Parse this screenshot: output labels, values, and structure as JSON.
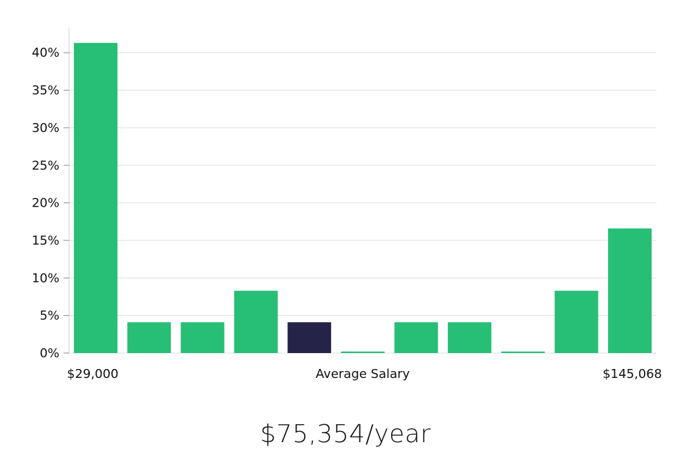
{
  "chart_data": {
    "type": "bar",
    "title": "",
    "xlabel": "Average Salary",
    "x_min_label": "$29,000",
    "x_max_label": "$145,068",
    "ylabel": "",
    "ylim": [
      0,
      43
    ],
    "yticks": [
      0,
      5,
      10,
      15,
      20,
      25,
      30,
      35,
      40
    ],
    "ytick_suffix": "%",
    "values": [
      41.3,
      4.1,
      4.1,
      8.3,
      4.1,
      0.2,
      4.1,
      4.1,
      0.2,
      8.3,
      16.6
    ],
    "highlight_index": 4,
    "grid": true
  },
  "colors": {
    "bar": "#27be75",
    "highlight": "#252347",
    "grid": "#dddddd",
    "axis": "#cccccc"
  },
  "summary": "$75,354/year"
}
